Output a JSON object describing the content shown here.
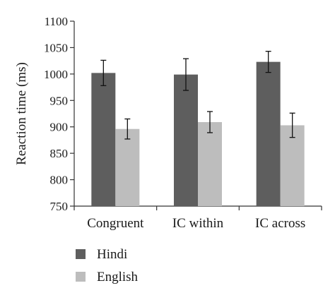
{
  "chart_data": {
    "type": "bar",
    "title": "",
    "xlabel": "",
    "ylabel": "Reaction time (ms)",
    "ylim": [
      750,
      1100
    ],
    "yticks": [
      750,
      800,
      850,
      900,
      950,
      1000,
      1050,
      1100
    ],
    "categories": [
      "Congruent",
      "IC within",
      "IC across"
    ],
    "series": [
      {
        "name": "Hindi",
        "color": "#5e5e5e",
        "values": [
          1002,
          999,
          1023
        ],
        "errors": [
          24,
          30,
          20
        ]
      },
      {
        "name": "English",
        "color": "#bdbdbd",
        "values": [
          896,
          909,
          903
        ],
        "errors": [
          19,
          20,
          23
        ]
      }
    ],
    "grid": false,
    "legend_position": "bottom-left",
    "error_bars": true
  }
}
